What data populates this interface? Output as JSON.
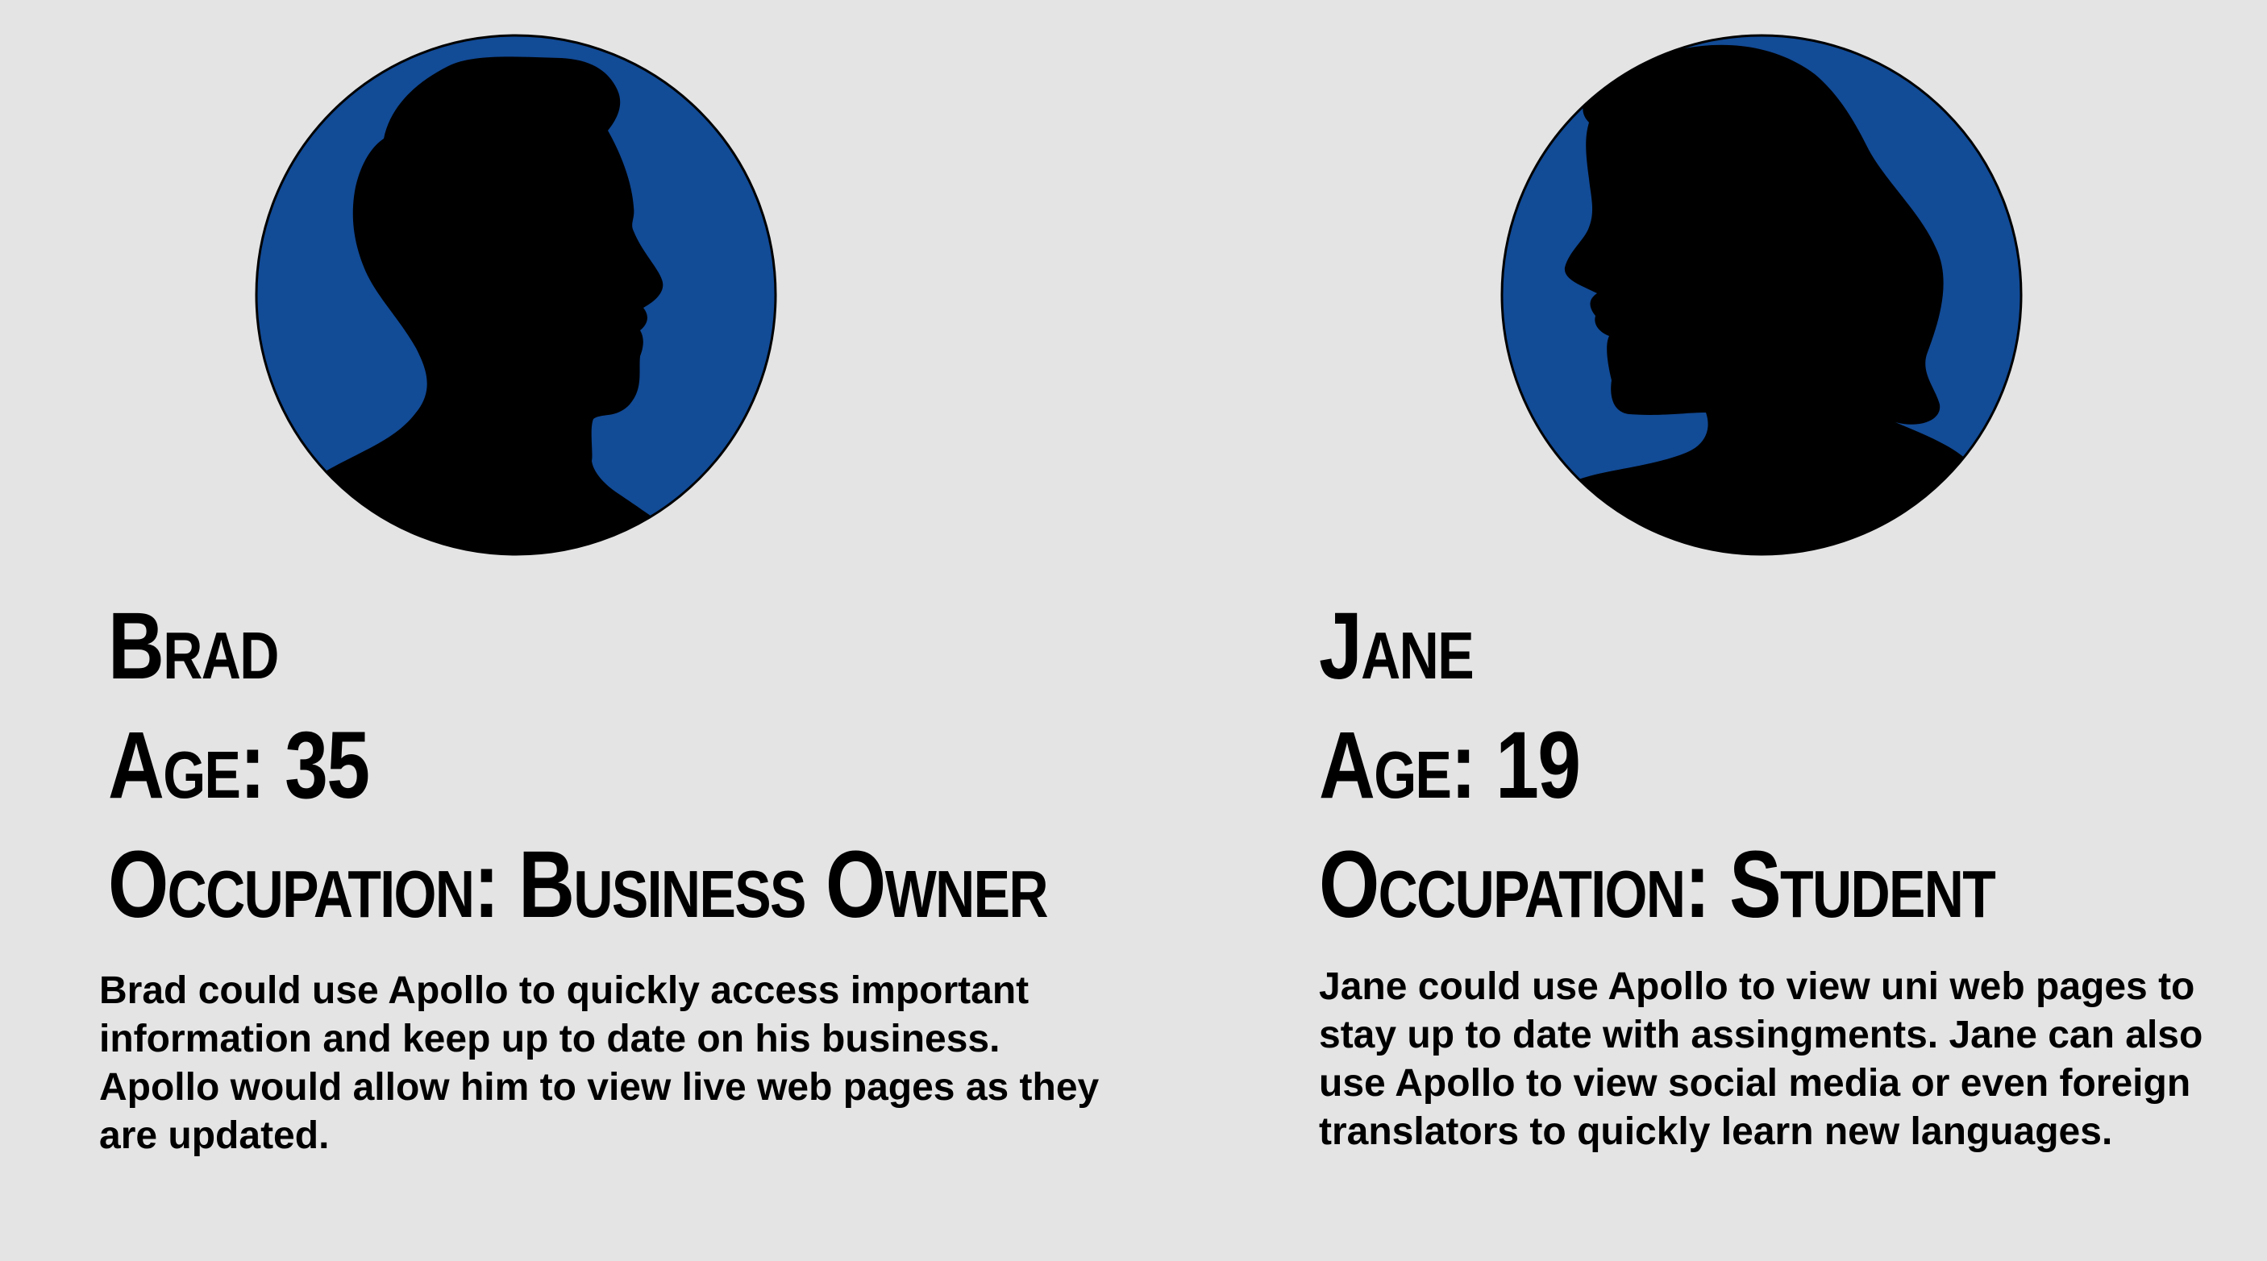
{
  "personas": [
    {
      "name": "Brad",
      "age_label": "Age: 35",
      "occupation_label": "Occupation: Business Owner",
      "description": "Brad could use Apollo to quickly access important information and keep up to date on his business. Apollo would allow him to view live web pages as they are updated.",
      "avatar_icon": "male-silhouette-icon"
    },
    {
      "name": "Jane",
      "age_label": "Age: 19",
      "occupation_label": "Occupation: Student",
      "description": "Jane could use Apollo to view uni web pages to stay up to date with assingments. Jane can also use Apollo to view social media or even foreign translators to quickly learn new languages.",
      "avatar_icon": "female-silhouette-icon"
    }
  ],
  "colors": {
    "background": "#e4e4e4",
    "avatar_circle": "#124b96",
    "silhouette": "#000000"
  }
}
